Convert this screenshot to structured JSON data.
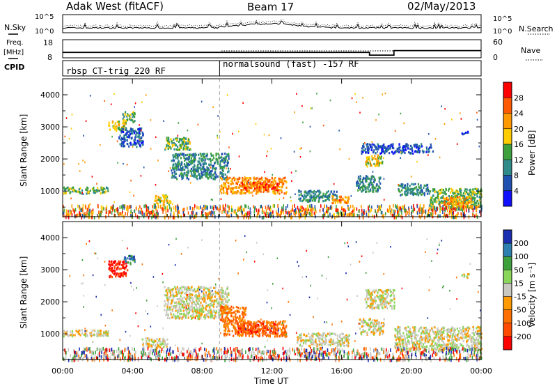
{
  "header": {
    "radar": "Adak West (fitACF)",
    "beam": "Beam 17",
    "date": "02/May/2013"
  },
  "noise_panel": {
    "left_label": "N.Sky",
    "right_label": "N.Search",
    "left_ticks": [
      "10^5",
      "10^0"
    ],
    "right_ticks": [
      "10^5",
      "10^0"
    ]
  },
  "freq_panel": {
    "left_label_line1": "Freq.",
    "left_label_line2": "[MHz]",
    "left_ticks": [
      "18",
      "8"
    ],
    "right_label": "Nave",
    "right_ticks": [
      "60",
      "0"
    ]
  },
  "cpid_panel": {
    "label": "CPID",
    "programs": [
      {
        "name": "rbsp CT-trig 220 RF",
        "start_hour": 0
      },
      {
        "name": "normalsound (fast) -157 RF",
        "start_hour": 9
      }
    ]
  },
  "axes": {
    "ylabel": "Slant Range [km]",
    "xlabel": "Time UT",
    "y_ticks": [
      "4000",
      "3000",
      "2000",
      "1000"
    ],
    "x_ticks": [
      "00:00",
      "04:00",
      "08:00",
      "12:00",
      "16:00",
      "20:00",
      "00:00"
    ]
  },
  "power_colorbar": {
    "label": "Power [dB]",
    "ticks": [
      "28",
      "24",
      "20",
      "16",
      "12",
      "8",
      "4"
    ],
    "colors": [
      "#ff0000",
      "#ff5a00",
      "#ff9900",
      "#ffcc00",
      "#3ca03c",
      "#2f8a8a",
      "#2050b0",
      "#1010ff"
    ]
  },
  "velocity_colorbar": {
    "label": "Velocity [m s⁻¹]",
    "ticks": [
      "200",
      "100",
      "50",
      "15",
      "-15",
      "-50",
      "-100",
      "-200"
    ],
    "colors": [
      "#1a2eb0",
      "#2d7fb0",
      "#3da03d",
      "#8ad65a",
      "#c8c8c0",
      "#ff9a00",
      "#ff7000",
      "#ff4a00",
      "#ff0000"
    ]
  },
  "chart_data": {
    "type": "heatmap",
    "xlabel": "Time UT",
    "ylabel": "Slant Range [km]",
    "xlim": [
      0,
      24
    ],
    "ylim": [
      200,
      4500
    ],
    "power_regions": [
      {
        "t0": 0.0,
        "t1": 2.6,
        "r0": 950,
        "r1": 1150,
        "level": 3
      },
      {
        "t0": 2.6,
        "t1": 3.6,
        "r0": 2900,
        "r1": 3200,
        "level": 4
      },
      {
        "t0": 3.4,
        "t1": 4.1,
        "r0": 3150,
        "r1": 3500,
        "level": 3
      },
      {
        "t0": 3.2,
        "t1": 4.6,
        "r0": 2400,
        "r1": 3000,
        "level": 1
      },
      {
        "t0": 5.8,
        "t1": 7.3,
        "r0": 2300,
        "r1": 2700,
        "level": 3
      },
      {
        "t0": 6.2,
        "t1": 9.5,
        "r0": 1400,
        "r1": 2200,
        "level": 2
      },
      {
        "t0": 9.0,
        "t1": 12.8,
        "r0": 950,
        "r1": 1450,
        "level": 5
      },
      {
        "t0": 10.2,
        "t1": 12.3,
        "r0": 1050,
        "r1": 1300,
        "level": 6
      },
      {
        "t0": 5.2,
        "t1": 6.2,
        "r0": 600,
        "r1": 900,
        "level": 4
      },
      {
        "t0": 13.5,
        "t1": 15.7,
        "r0": 700,
        "r1": 1050,
        "level": 2
      },
      {
        "t0": 15.4,
        "t1": 16.4,
        "r0": 650,
        "r1": 900,
        "level": 5
      },
      {
        "t0": 16.8,
        "t1": 18.2,
        "r0": 1000,
        "r1": 1500,
        "level": 2
      },
      {
        "t0": 17.3,
        "t1": 18.3,
        "r0": 1800,
        "r1": 2150,
        "level": 4
      },
      {
        "t0": 17.1,
        "t1": 21.2,
        "r0": 2200,
        "r1": 2500,
        "level": 1
      },
      {
        "t0": 19.2,
        "t1": 21.0,
        "r0": 900,
        "r1": 1250,
        "level": 2
      },
      {
        "t0": 21.0,
        "t1": 24.0,
        "r0": 450,
        "r1": 1100,
        "level": 3
      },
      {
        "t0": 21.8,
        "t1": 23.4,
        "r0": 500,
        "r1": 850,
        "level": 5
      },
      {
        "t0": 13.0,
        "t1": 14.2,
        "r0": 400,
        "r1": 460,
        "level": 6
      },
      {
        "t0": 22.8,
        "t1": 23.3,
        "r0": 2780,
        "r1": 2900,
        "level": 1
      }
    ],
    "velocity_regions": [
      {
        "t0": 2.6,
        "t1": 3.7,
        "r0": 2800,
        "r1": 3300,
        "level": 8
      },
      {
        "t0": 3.5,
        "t1": 4.1,
        "r0": 3200,
        "r1": 3500,
        "level": 1
      },
      {
        "t0": 0.0,
        "t1": 2.6,
        "r0": 950,
        "r1": 1150,
        "level": 4
      },
      {
        "t0": 5.8,
        "t1": 9.5,
        "r0": 1500,
        "r1": 2500,
        "level": 4
      },
      {
        "t0": 9.0,
        "t1": 10.5,
        "r0": 1400,
        "r1": 1900,
        "level": 6
      },
      {
        "t0": 9.2,
        "t1": 12.8,
        "r0": 950,
        "r1": 1450,
        "level": 6
      },
      {
        "t0": 10.0,
        "t1": 12.2,
        "r0": 1050,
        "r1": 1350,
        "level": 7
      },
      {
        "t0": 13.4,
        "t1": 16.4,
        "r0": 650,
        "r1": 1050,
        "level": 4
      },
      {
        "t0": 13.0,
        "t1": 14.2,
        "r0": 390,
        "r1": 460,
        "level": 7
      },
      {
        "t0": 17.0,
        "t1": 18.4,
        "r0": 1000,
        "r1": 1500,
        "level": 4
      },
      {
        "t0": 17.3,
        "t1": 19.0,
        "r0": 1800,
        "r1": 2400,
        "level": 4
      },
      {
        "t0": 19.0,
        "t1": 24.0,
        "r0": 500,
        "r1": 1250,
        "level": 4
      },
      {
        "t0": 4.5,
        "t1": 6.0,
        "r0": 600,
        "r1": 900,
        "level": 4
      },
      {
        "t0": 22.8,
        "t1": 23.3,
        "r0": 2780,
        "r1": 2900,
        "level": 4
      }
    ],
    "cpid_change_hour": 9,
    "frequency_mhz": [
      [
        0,
        11
      ],
      [
        17.6,
        11
      ],
      [
        17.6,
        9.5
      ],
      [
        19.0,
        9.5
      ],
      [
        19.0,
        12
      ],
      [
        24,
        12
      ]
    ]
  }
}
